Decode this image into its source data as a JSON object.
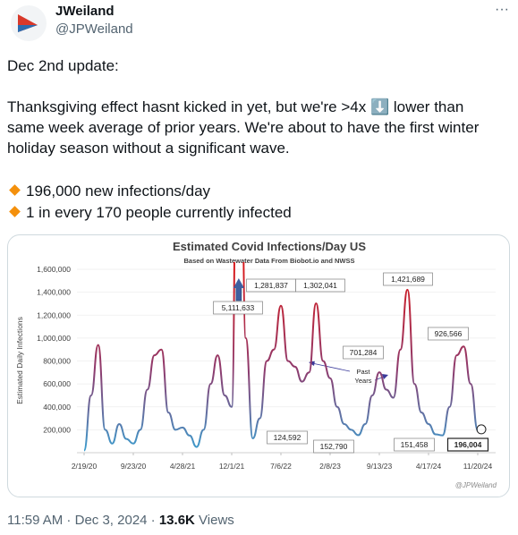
{
  "tweet": {
    "name": "JWeiland",
    "handle": "@JPWeiland",
    "text": [
      "Dec 2nd update:",
      "Thanksgiving effect hasnt kicked in yet, but we're >4x ⬇️ lower than same week average of prior years. We're about to have the first winter holiday season without a significant wave."
    ],
    "bullets": [
      "196,000 new infections/day",
      "1 in every 170 people currently infected"
    ],
    "time": "11:59 AM",
    "date": "Dec 3, 2024",
    "views": "13.6K",
    "views_label": "Views"
  },
  "chart_data": {
    "type": "line",
    "title": "Estimated Covid Infections/Day US",
    "subtitle": "Based on Wastewater Data From Biobot.io and NWSS",
    "y_label": "Estimated Daily Infections",
    "watermark": "@JPWeiland",
    "annotations": [
      "Past Years"
    ],
    "categories": [
      "2/19/20",
      null,
      null,
      null,
      null,
      null,
      null,
      "9/23/20",
      null,
      null,
      null,
      null,
      null,
      null,
      "4/28/21",
      null,
      null,
      null,
      null,
      null,
      null,
      "12/1/21",
      null,
      null,
      null,
      null,
      null,
      null,
      "7/6/22",
      null,
      null,
      null,
      null,
      null,
      null,
      "2/8/23",
      null,
      null,
      null,
      null,
      null,
      null,
      "9/13/23",
      null,
      null,
      null,
      null,
      null,
      null,
      "4/17/24",
      null,
      null,
      null,
      null,
      null,
      null,
      "11/20/24"
    ],
    "values": [
      20000,
      500000,
      940000,
      200000,
      80000,
      250000,
      120000,
      80000,
      200000,
      550000,
      850000,
      900000,
      350000,
      200000,
      220000,
      150000,
      50000,
      200000,
      600000,
      850000,
      500000,
      400000,
      5111633,
      1000000,
      124592,
      300000,
      800000,
      900000,
      1281837,
      800000,
      750000,
      620000,
      700000,
      1302041,
      800000,
      650000,
      400000,
      250000,
      200000,
      152790,
      250000,
      500000,
      701284,
      550000,
      480000,
      900000,
      1421689,
      600000,
      350000,
      250000,
      160000,
      151458,
      400000,
      850000,
      926566,
      600000,
      196004
    ],
    "value_labels": [
      null,
      null,
      null,
      null,
      null,
      null,
      null,
      null,
      null,
      null,
      null,
      null,
      null,
      null,
      null,
      null,
      null,
      null,
      null,
      null,
      null,
      null,
      "5,111,633",
      null,
      "124,592",
      null,
      null,
      null,
      "1,281,837",
      null,
      null,
      null,
      null,
      "1,302,041",
      null,
      null,
      null,
      null,
      null,
      "152,790",
      null,
      null,
      "701,284",
      null,
      null,
      null,
      "1,421,689",
      null,
      null,
      null,
      null,
      "151,458",
      null,
      null,
      "926,566",
      null,
      "196,004"
    ],
    "colors": [
      "#d7191c",
      "#8e3b6e",
      "#3a9fd0"
    ],
    "ylim": [
      0,
      1600000
    ],
    "yticks": [
      {
        "value": 200000,
        "label": "200,000"
      },
      {
        "value": 400000,
        "label": "400,000"
      },
      {
        "value": 600000,
        "label": "600,000"
      },
      {
        "value": 800000,
        "label": "800,000"
      },
      {
        "value": 1000000,
        "label": "1,000,000"
      },
      {
        "value": 1200000,
        "label": "1,200,000"
      },
      {
        "value": 1400000,
        "label": "1,400,000"
      },
      {
        "value": 1600000,
        "label": "1,600,000"
      }
    ],
    "grid": true
  }
}
